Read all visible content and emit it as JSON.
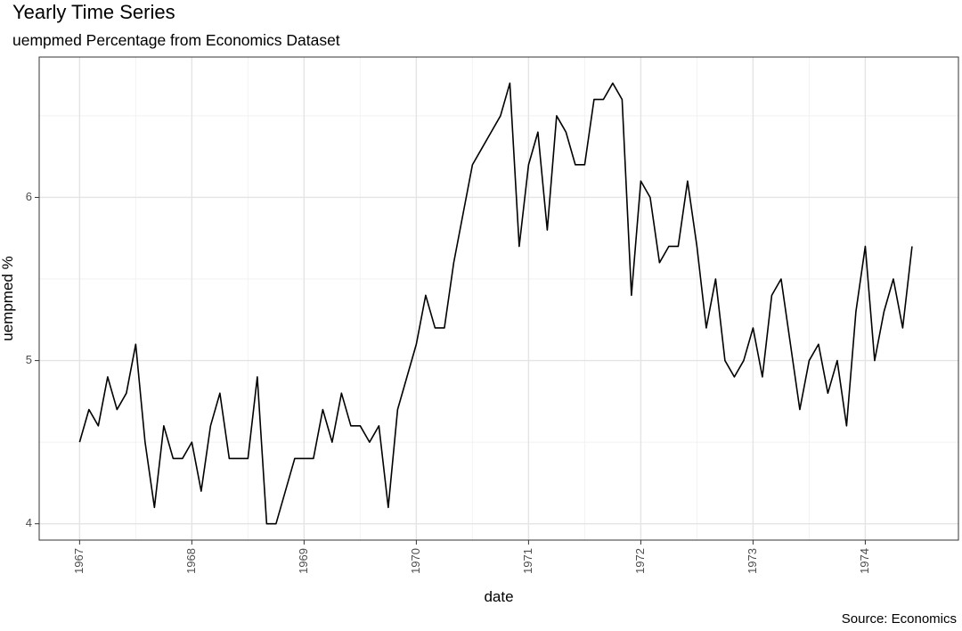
{
  "chart_data": {
    "type": "line",
    "title": "Yearly Time Series",
    "subtitle": "uempmed Percentage from Economics Dataset",
    "caption": "Source: Economics",
    "xlabel": "date",
    "ylabel": "uempmed %",
    "xlim": [
      1966.64,
      1974.83
    ],
    "ylim": [
      3.9,
      6.86
    ],
    "x_ticks": [
      1967,
      1968,
      1969,
      1970,
      1971,
      1972,
      1973,
      1974
    ],
    "x_tick_labels": [
      "1967",
      "1968",
      "1969",
      "1970",
      "1971",
      "1972",
      "1973",
      "1974"
    ],
    "y_ticks": [
      4,
      5,
      6
    ],
    "y_tick_labels": [
      "4",
      "5",
      "6"
    ],
    "grid": true,
    "line_color": "#000000",
    "series": [
      {
        "name": "uempmed",
        "start": 1967.0,
        "frequency": "monthly",
        "values": [
          4.5,
          4.7,
          4.6,
          4.9,
          4.7,
          4.8,
          5.1,
          4.5,
          4.1,
          4.6,
          4.4,
          4.4,
          4.5,
          4.2,
          4.6,
          4.8,
          4.4,
          4.4,
          4.4,
          4.9,
          4.0,
          4.0,
          4.2,
          4.4,
          4.4,
          4.4,
          4.7,
          4.5,
          4.8,
          4.6,
          4.6,
          4.5,
          4.6,
          4.1,
          4.7,
          4.9,
          5.1,
          5.4,
          5.2,
          5.2,
          5.6,
          5.9,
          6.2,
          6.3,
          6.4,
          6.5,
          6.7,
          5.7,
          6.2,
          6.4,
          5.8,
          6.5,
          6.4,
          6.2,
          6.2,
          6.6,
          6.6,
          6.7,
          6.6,
          5.4,
          6.1,
          6.0,
          5.6,
          5.7,
          5.7,
          6.1,
          5.7,
          5.2,
          5.5,
          5.0,
          4.9,
          5.0,
          5.2,
          4.9,
          5.4,
          5.5,
          5.1,
          4.7,
          5.0,
          5.1,
          4.8,
          5.0,
          4.6,
          5.3,
          5.7,
          5.0,
          5.3,
          5.5,
          5.2,
          5.7
        ]
      }
    ]
  }
}
